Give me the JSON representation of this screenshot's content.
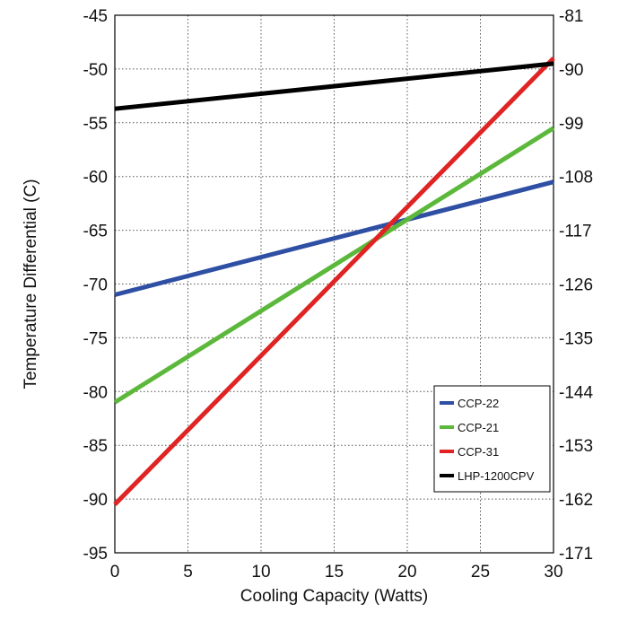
{
  "chart_data": {
    "type": "line",
    "title": "",
    "xlabel": "Cooling Capacity (Watts)",
    "ylabel": "Temperature Differential (C)",
    "xlim": [
      0,
      30
    ],
    "ylim": [
      -95,
      -45
    ],
    "x_ticks": [
      "0",
      "5",
      "10",
      "15",
      "20",
      "25",
      "30"
    ],
    "y_ticks": [
      "-45",
      "-50",
      "-55",
      "-60",
      "-65",
      "-70",
      "-75",
      "-80",
      "-85",
      "-90",
      "-95"
    ],
    "y2_ticks": [
      "-81",
      "-90",
      "-99",
      "-108",
      "-117",
      "-126",
      "-135",
      "-144",
      "-153",
      "-162",
      "-171"
    ],
    "grid": true,
    "legend_position": "bottom-right",
    "series": [
      {
        "name": "CCP-22",
        "color": "#2e4fa3",
        "x": [
          0,
          30
        ],
        "y": [
          -71.0,
          -60.5
        ]
      },
      {
        "name": "CCP-21",
        "color": "#5cb83a",
        "x": [
          0,
          30
        ],
        "y": [
          -81.0,
          -55.5
        ]
      },
      {
        "name": "CCP-31",
        "color": "#e02424",
        "x": [
          0,
          30
        ],
        "y": [
          -90.5,
          -49.0
        ]
      },
      {
        "name": "LHP-1200CPV",
        "color": "#000000",
        "x": [
          0,
          30
        ],
        "y": [
          -53.7,
          -49.5
        ]
      }
    ]
  }
}
